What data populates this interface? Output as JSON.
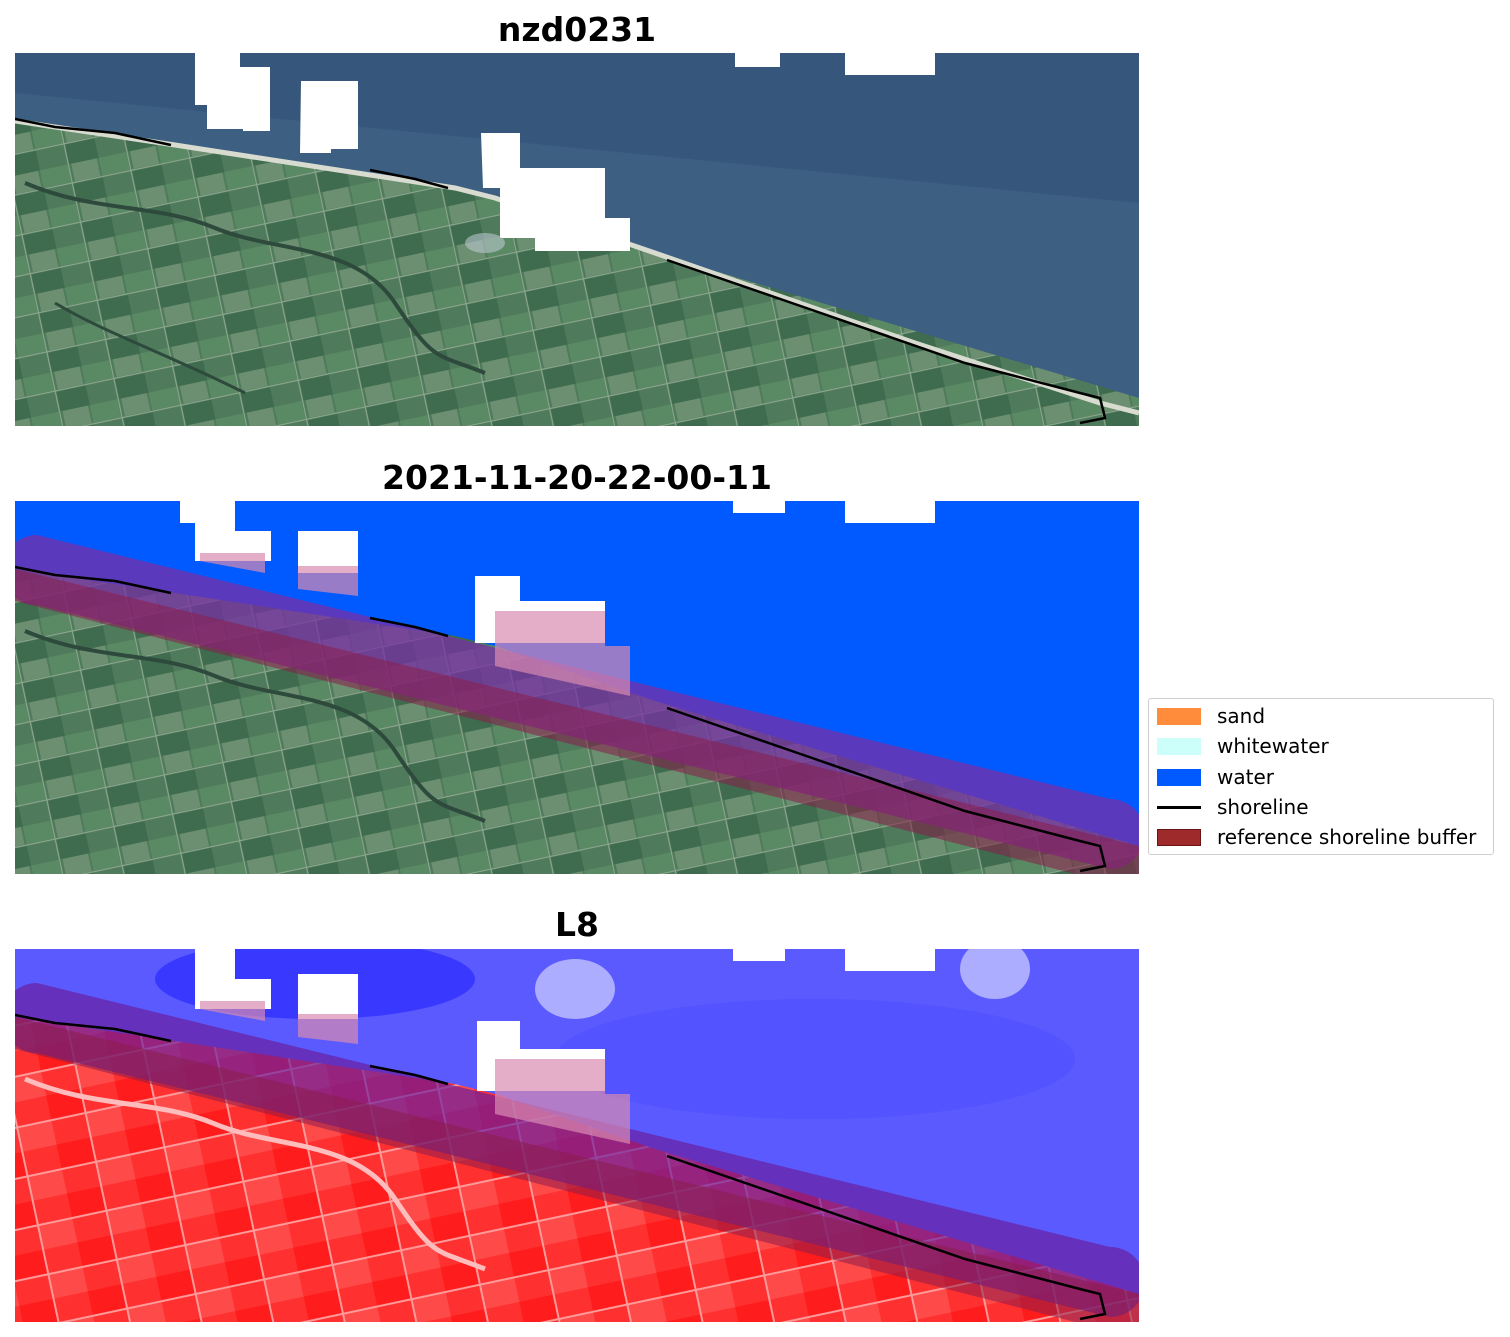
{
  "panels": [
    {
      "title": "nzd0231",
      "kind": "rgb",
      "image": "true-color satellite image of coastline"
    },
    {
      "title": "2021-11-20-22-00-11",
      "kind": "classified",
      "image": "classified image with reference shoreline buffer"
    },
    {
      "title": "L8",
      "kind": "index",
      "image": "false-color index image (red land, blue water)"
    }
  ],
  "legend": {
    "items": [
      {
        "label": "sand",
        "color": "#ff8c3a",
        "type": "patch"
      },
      {
        "label": "whitewater",
        "color": "#ccfffa",
        "type": "patch"
      },
      {
        "label": "water",
        "color": "#005aff",
        "type": "patch"
      },
      {
        "label": "shoreline",
        "color": "#000000",
        "type": "line"
      },
      {
        "label": "reference shoreline buffer",
        "color": "#9e2a2b",
        "type": "patch"
      }
    ]
  }
}
